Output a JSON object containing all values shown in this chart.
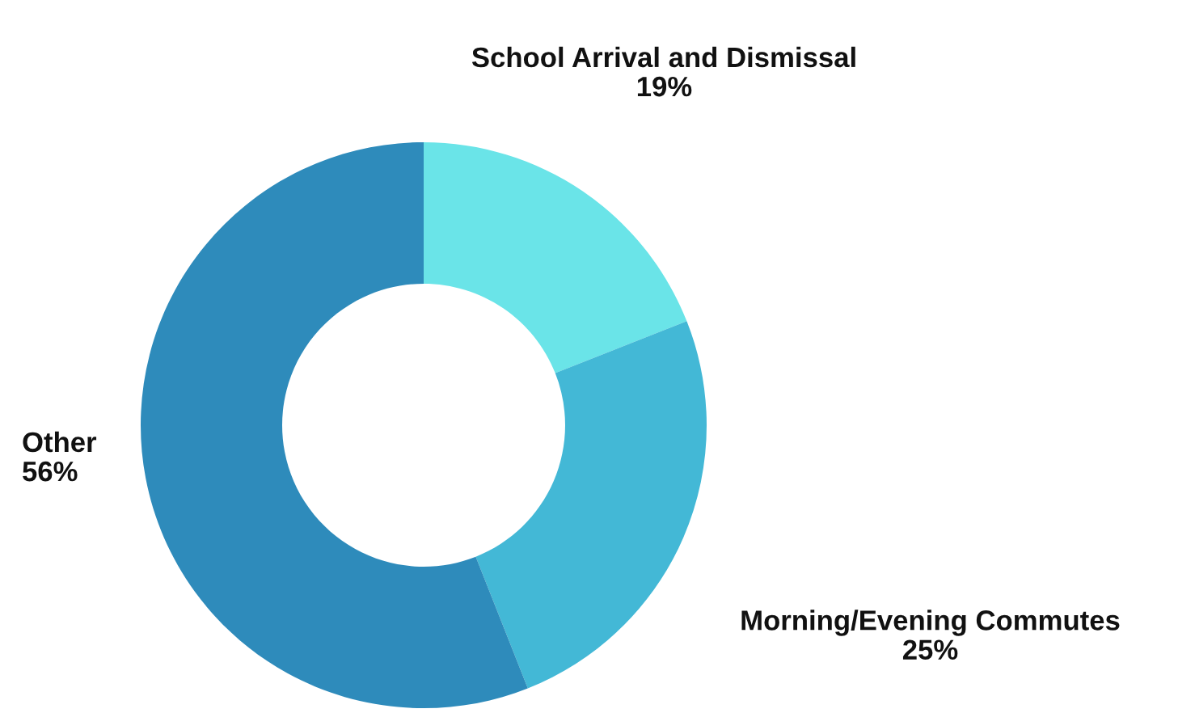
{
  "chart_data": {
    "type": "donut",
    "categories": [
      "School Arrival and Dismissal",
      "Morning/Evening Commutes",
      "Other"
    ],
    "values": [
      19,
      25,
      56
    ],
    "colors": [
      "#6ae4e8",
      "#43b8d6",
      "#2e8bbb"
    ],
    "value_labels": [
      "19%",
      "25%",
      "56%"
    ]
  }
}
